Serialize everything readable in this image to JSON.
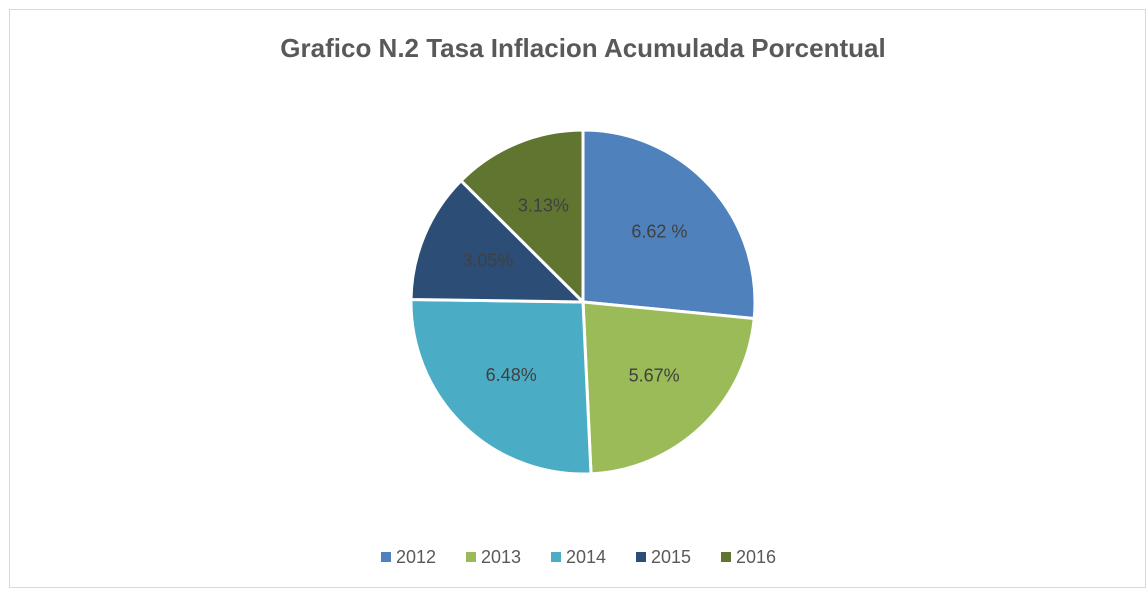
{
  "chart_data": {
    "type": "pie",
    "title": "Grafico N.2 Tasa Inflacion Acumulada Porcentual",
    "categories": [
      "2012",
      "2013",
      "2014",
      "2015",
      "2016"
    ],
    "values": [
      6.62,
      5.67,
      6.48,
      3.05,
      3.13
    ],
    "value_labels": [
      "6.62 %",
      "5.67%",
      "6.48%",
      "3.05%",
      "3.13%"
    ],
    "colors": [
      "#4f81bd",
      "#9bbb59",
      "#4bacc6",
      "#2c4d75",
      "#5f7530"
    ],
    "legend": "bottom"
  }
}
